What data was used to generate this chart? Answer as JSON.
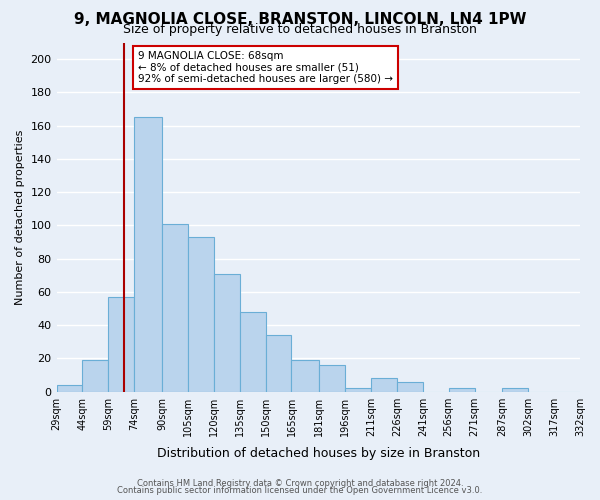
{
  "title": "9, MAGNOLIA CLOSE, BRANSTON, LINCOLN, LN4 1PW",
  "subtitle": "Size of property relative to detached houses in Branston",
  "xlabel": "Distribution of detached houses by size in Branston",
  "ylabel": "Number of detached properties",
  "bar_values": [
    4,
    19,
    57,
    165,
    101,
    93,
    71,
    48,
    34,
    19,
    16,
    2,
    8,
    6,
    0,
    2,
    0,
    2,
    0,
    0
  ],
  "bin_edges": [
    29,
    44,
    59,
    74,
    90,
    105,
    120,
    135,
    150,
    165,
    181,
    196,
    211,
    226,
    241,
    256,
    271,
    287,
    302,
    317,
    332
  ],
  "bin_labels": [
    "29sqm",
    "44sqm",
    "59sqm",
    "74sqm",
    "90sqm",
    "105sqm",
    "120sqm",
    "135sqm",
    "150sqm",
    "165sqm",
    "181sqm",
    "196sqm",
    "211sqm",
    "226sqm",
    "241sqm",
    "256sqm",
    "271sqm",
    "287sqm",
    "302sqm",
    "317sqm",
    "332sqm"
  ],
  "bar_color": "#bad4ed",
  "bar_edge_color": "#6aaed6",
  "vline_x": 68,
  "vline_color": "#aa0000",
  "annotation_text": "9 MAGNOLIA CLOSE: 68sqm\n← 8% of detached houses are smaller (51)\n92% of semi-detached houses are larger (580) →",
  "annotation_box_color": "#ffffff",
  "annotation_box_edge": "#cc0000",
  "ylim": [
    0,
    210
  ],
  "yticks": [
    0,
    20,
    40,
    60,
    80,
    100,
    120,
    140,
    160,
    180,
    200
  ],
  "footer1": "Contains HM Land Registry data © Crown copyright and database right 2024.",
  "footer2": "Contains public sector information licensed under the Open Government Licence v3.0.",
  "background_color": "#e8eff8",
  "plot_bg_color": "#e8eff8",
  "grid_color": "#ffffff"
}
